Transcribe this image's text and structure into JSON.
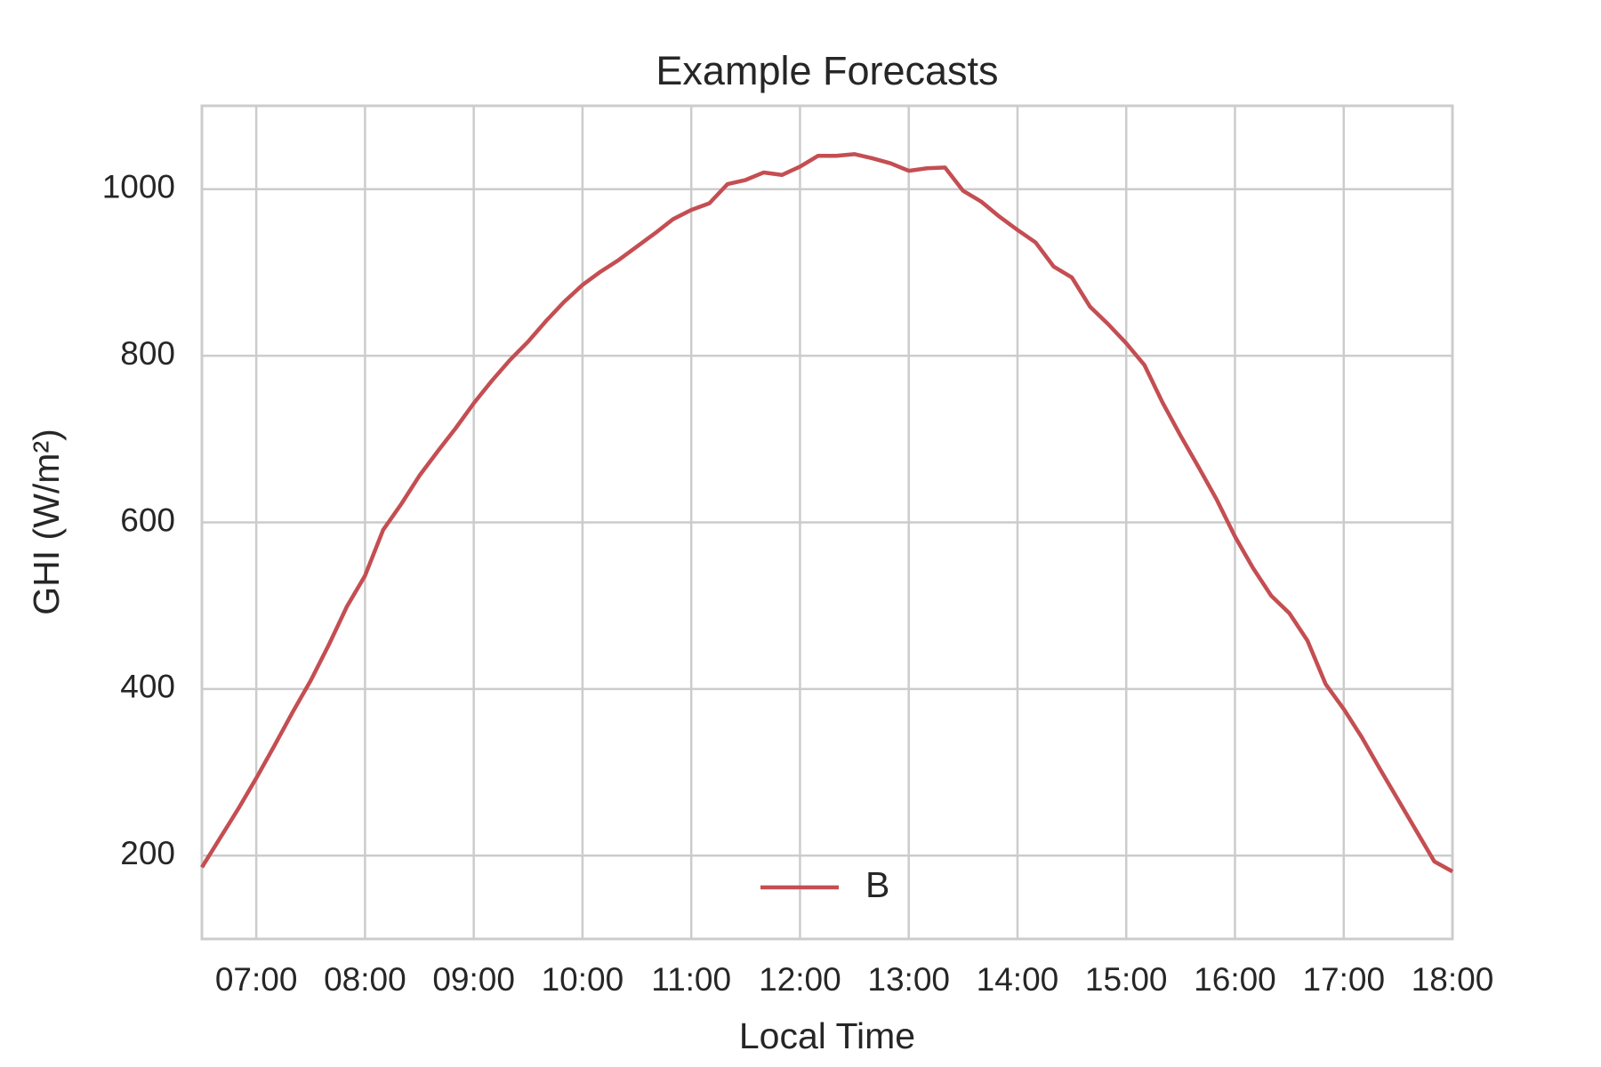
{
  "chart_data": {
    "type": "line",
    "title": "Example Forecasts",
    "x_label": "Local Time",
    "y_label": "GHI (W/m²)",
    "x": [
      "06:30",
      "06:40",
      "06:50",
      "07:00",
      "07:10",
      "07:20",
      "07:30",
      "07:40",
      "07:50",
      "08:00",
      "08:10",
      "08:20",
      "08:30",
      "08:40",
      "08:50",
      "09:00",
      "09:10",
      "09:20",
      "09:30",
      "09:40",
      "09:50",
      "10:00",
      "10:10",
      "10:20",
      "10:30",
      "10:40",
      "10:50",
      "11:00",
      "11:10",
      "11:20",
      "11:30",
      "11:40",
      "11:50",
      "12:00",
      "12:10",
      "12:20",
      "12:30",
      "12:40",
      "12:50",
      "13:00",
      "13:10",
      "13:20",
      "13:30",
      "13:40",
      "13:50",
      "14:00",
      "14:10",
      "14:20",
      "14:30",
      "14:40",
      "14:50",
      "15:00",
      "15:10",
      "15:20",
      "15:30",
      "15:40",
      "15:50",
      "16:00",
      "16:10",
      "16:20",
      "16:30",
      "16:40",
      "16:50",
      "17:00",
      "17:10",
      "17:20",
      "17:30",
      "17:40",
      "17:50",
      "18:00"
    ],
    "series": [
      {
        "name": "B",
        "color": "#c44e52",
        "values": [
          186,
          221,
          256,
          293,
          332,
          372,
          410,
          453,
          499,
          536,
          591,
          622,
          656,
          685,
          713,
          743,
          770,
          795,
          817,
          842,
          865,
          885,
          901,
          915,
          931,
          947,
          964,
          975,
          983,
          1006,
          1011,
          1020,
          1017,
          1027,
          1040,
          1040,
          1042,
          1037,
          1031,
          1022,
          1025,
          1026,
          998,
          985,
          967,
          951,
          936,
          907,
          894,
          859,
          838,
          815,
          789,
          744,
          704,
          666,
          627,
          583,
          545,
          512,
          491,
          458,
          406,
          376,
          342,
          304,
          267,
          230,
          193,
          181
        ]
      }
    ],
    "xlim": [
      "06:30",
      "18:00"
    ],
    "xticks": [
      "07:00",
      "08:00",
      "09:00",
      "10:00",
      "11:00",
      "12:00",
      "13:00",
      "14:00",
      "15:00",
      "16:00",
      "17:00",
      "18:00"
    ],
    "ylim": [
      100,
      1100
    ],
    "yticks": [
      200,
      400,
      600,
      800,
      1000
    ],
    "grid": true,
    "legend": "lower center"
  }
}
